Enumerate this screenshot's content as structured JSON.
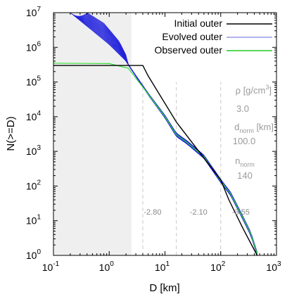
{
  "chart_data": {
    "type": "line",
    "xscale": "log",
    "yscale": "log",
    "xlim": [
      0.1,
      1000
    ],
    "ylim": [
      1,
      10000000
    ],
    "xlabel": "D [km]",
    "ylabel": "N(>=D)",
    "x_ticks": [
      0.1,
      1,
      10,
      100,
      1000
    ],
    "x_tick_labels": [
      "10",
      "10",
      "10",
      "10",
      "10"
    ],
    "x_tick_exps": [
      "-1",
      "0",
      "1",
      "2",
      "3"
    ],
    "y_ticks": [
      1,
      10,
      100,
      1000,
      10000,
      100000,
      1000000,
      10000000
    ],
    "y_tick_labels": [
      "10",
      "10",
      "10",
      "10",
      "10",
      "10",
      "10",
      "10"
    ],
    "y_tick_exps": [
      "0",
      "1",
      "2",
      "3",
      "4",
      "5",
      "6",
      "7"
    ],
    "shaded_region": {
      "x": [
        0.1,
        2.5
      ],
      "color": "#efefef"
    },
    "slope_breaks": [
      4,
      16,
      100
    ],
    "slope_labels": [
      {
        "text": "-2.80",
        "x": 6.0,
        "y": 15
      },
      {
        "text": "-2.10",
        "x": 40,
        "y": 15
      },
      {
        "text": "-3.55",
        "x": 230,
        "y": 15
      }
    ],
    "annotations": {
      "rho_label": "ρ [g/cm",
      "rho_unit_exp": "3",
      "rho_unit_close": "]",
      "rho_value": "3.0",
      "dnorm_label": "d",
      "dnorm_sub": "norm",
      "dnorm_unit": " [km]",
      "dnorm_value": "100.0",
      "nnorm_label": "n",
      "nnorm_sub": "norm",
      "nnorm_value": "140"
    },
    "legend": {
      "placement": "top-right",
      "entries": [
        {
          "label": "Initial outer",
          "color": "#000000"
        },
        {
          "label": "Evolved outer",
          "color": "#3333cc"
        },
        {
          "label": "Observed outer",
          "color": "#22cc22"
        }
      ]
    },
    "series": [
      {
        "name": "Initial outer",
        "color": "#000000",
        "points": [
          [
            0.1,
            300000
          ],
          [
            4,
            300000
          ],
          [
            5,
            150000
          ],
          [
            16,
            7000
          ],
          [
            100,
            150
          ],
          [
            140,
            40
          ],
          [
            250,
            6
          ],
          [
            450,
            1
          ]
        ]
      },
      {
        "name": "Observed outer",
        "color": "#33dd33",
        "points": [
          [
            0.1,
            350000
          ],
          [
            1,
            340000
          ],
          [
            2.2,
            250000
          ],
          [
            3,
            130000
          ],
          [
            5,
            45000
          ],
          [
            10,
            10000
          ],
          [
            16,
            3000
          ],
          [
            25,
            1800
          ],
          [
            50,
            700
          ],
          [
            100,
            140
          ],
          [
            150,
            60
          ],
          [
            250,
            12
          ],
          [
            350,
            4
          ],
          [
            450,
            1.1
          ]
        ]
      },
      {
        "name": "Evolved outer",
        "color": "#2222dd",
        "ensemble_members": 40,
        "envelope_low": [
          [
            0.2,
            10000000
          ],
          [
            0.5,
            3000000
          ],
          [
            1,
            1200000
          ],
          [
            2,
            400000
          ]
        ],
        "envelope_high": [
          [
            0.4,
            10000000
          ],
          [
            0.8,
            5000000
          ],
          [
            1.5,
            1500000
          ],
          [
            2,
            600000
          ]
        ],
        "points": [
          [
            2,
            400000
          ],
          [
            3,
            150000
          ],
          [
            5,
            45000
          ],
          [
            10,
            10000
          ],
          [
            16,
            3000
          ],
          [
            25,
            1800
          ],
          [
            50,
            700
          ],
          [
            100,
            140
          ],
          [
            150,
            60
          ],
          [
            250,
            12
          ],
          [
            350,
            4
          ],
          [
            450,
            1.1
          ]
        ]
      }
    ]
  }
}
